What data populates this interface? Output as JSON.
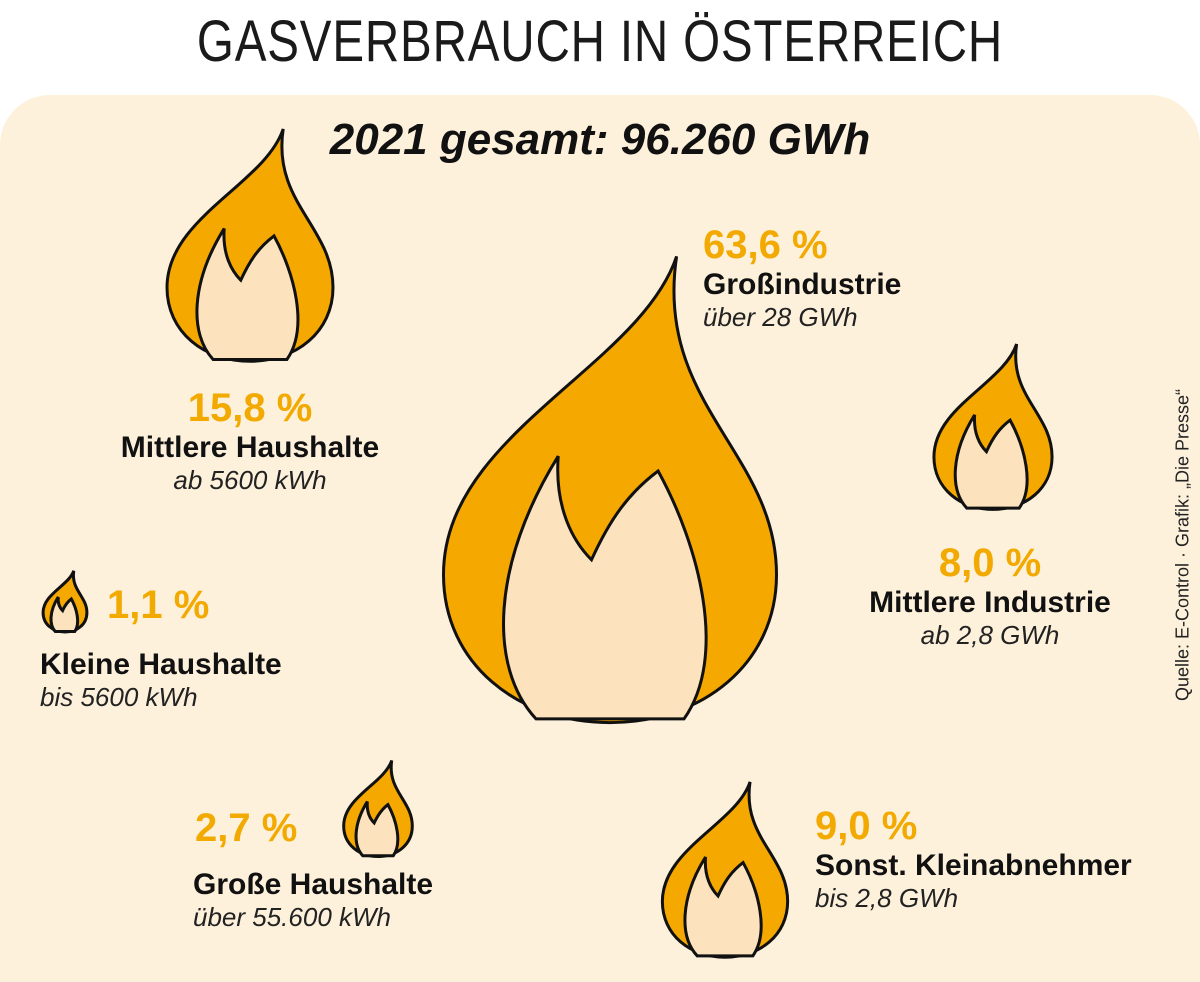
{
  "title": "GASVERBRAUCH IN ÖSTERREICH",
  "source": "Quelle: E-Control · Grafik: „Die Presse“",
  "colors": {
    "background": "#fdf1dc",
    "flame_outer": "#f5a800",
    "flame_inner": "#fde3bd",
    "outline": "#111111",
    "percent_text": "#f2a900"
  },
  "chart_data": {
    "type": "proportional-area",
    "title": "2021 gesamt: 96.260 GWh",
    "unit": "%",
    "categories": [
      {
        "name": "Großindustrie",
        "range": "über 28 GWh",
        "value": 63.6,
        "label": "63,6 %"
      },
      {
        "name": "Mittlere Haushalte",
        "range": "ab 5600 kWh",
        "value": 15.8,
        "label": "15,8 %"
      },
      {
        "name": "Kleine Haushalte",
        "range": "bis 5600 kWh",
        "value": 1.1,
        "label": "1,1 %"
      },
      {
        "name": "Große Haushalte",
        "range": "über 55.600 kWh",
        "value": 2.7,
        "label": "2,7 %"
      },
      {
        "name": "Mittlere Industrie",
        "range": "ab 2,8 GWh",
        "value": 8.0,
        "label": "8,0 %"
      },
      {
        "name": "Sonst. Kleinabnehmer",
        "range": "bis 2,8 GWh",
        "value": 9.0,
        "label": "9,0 %"
      }
    ]
  }
}
